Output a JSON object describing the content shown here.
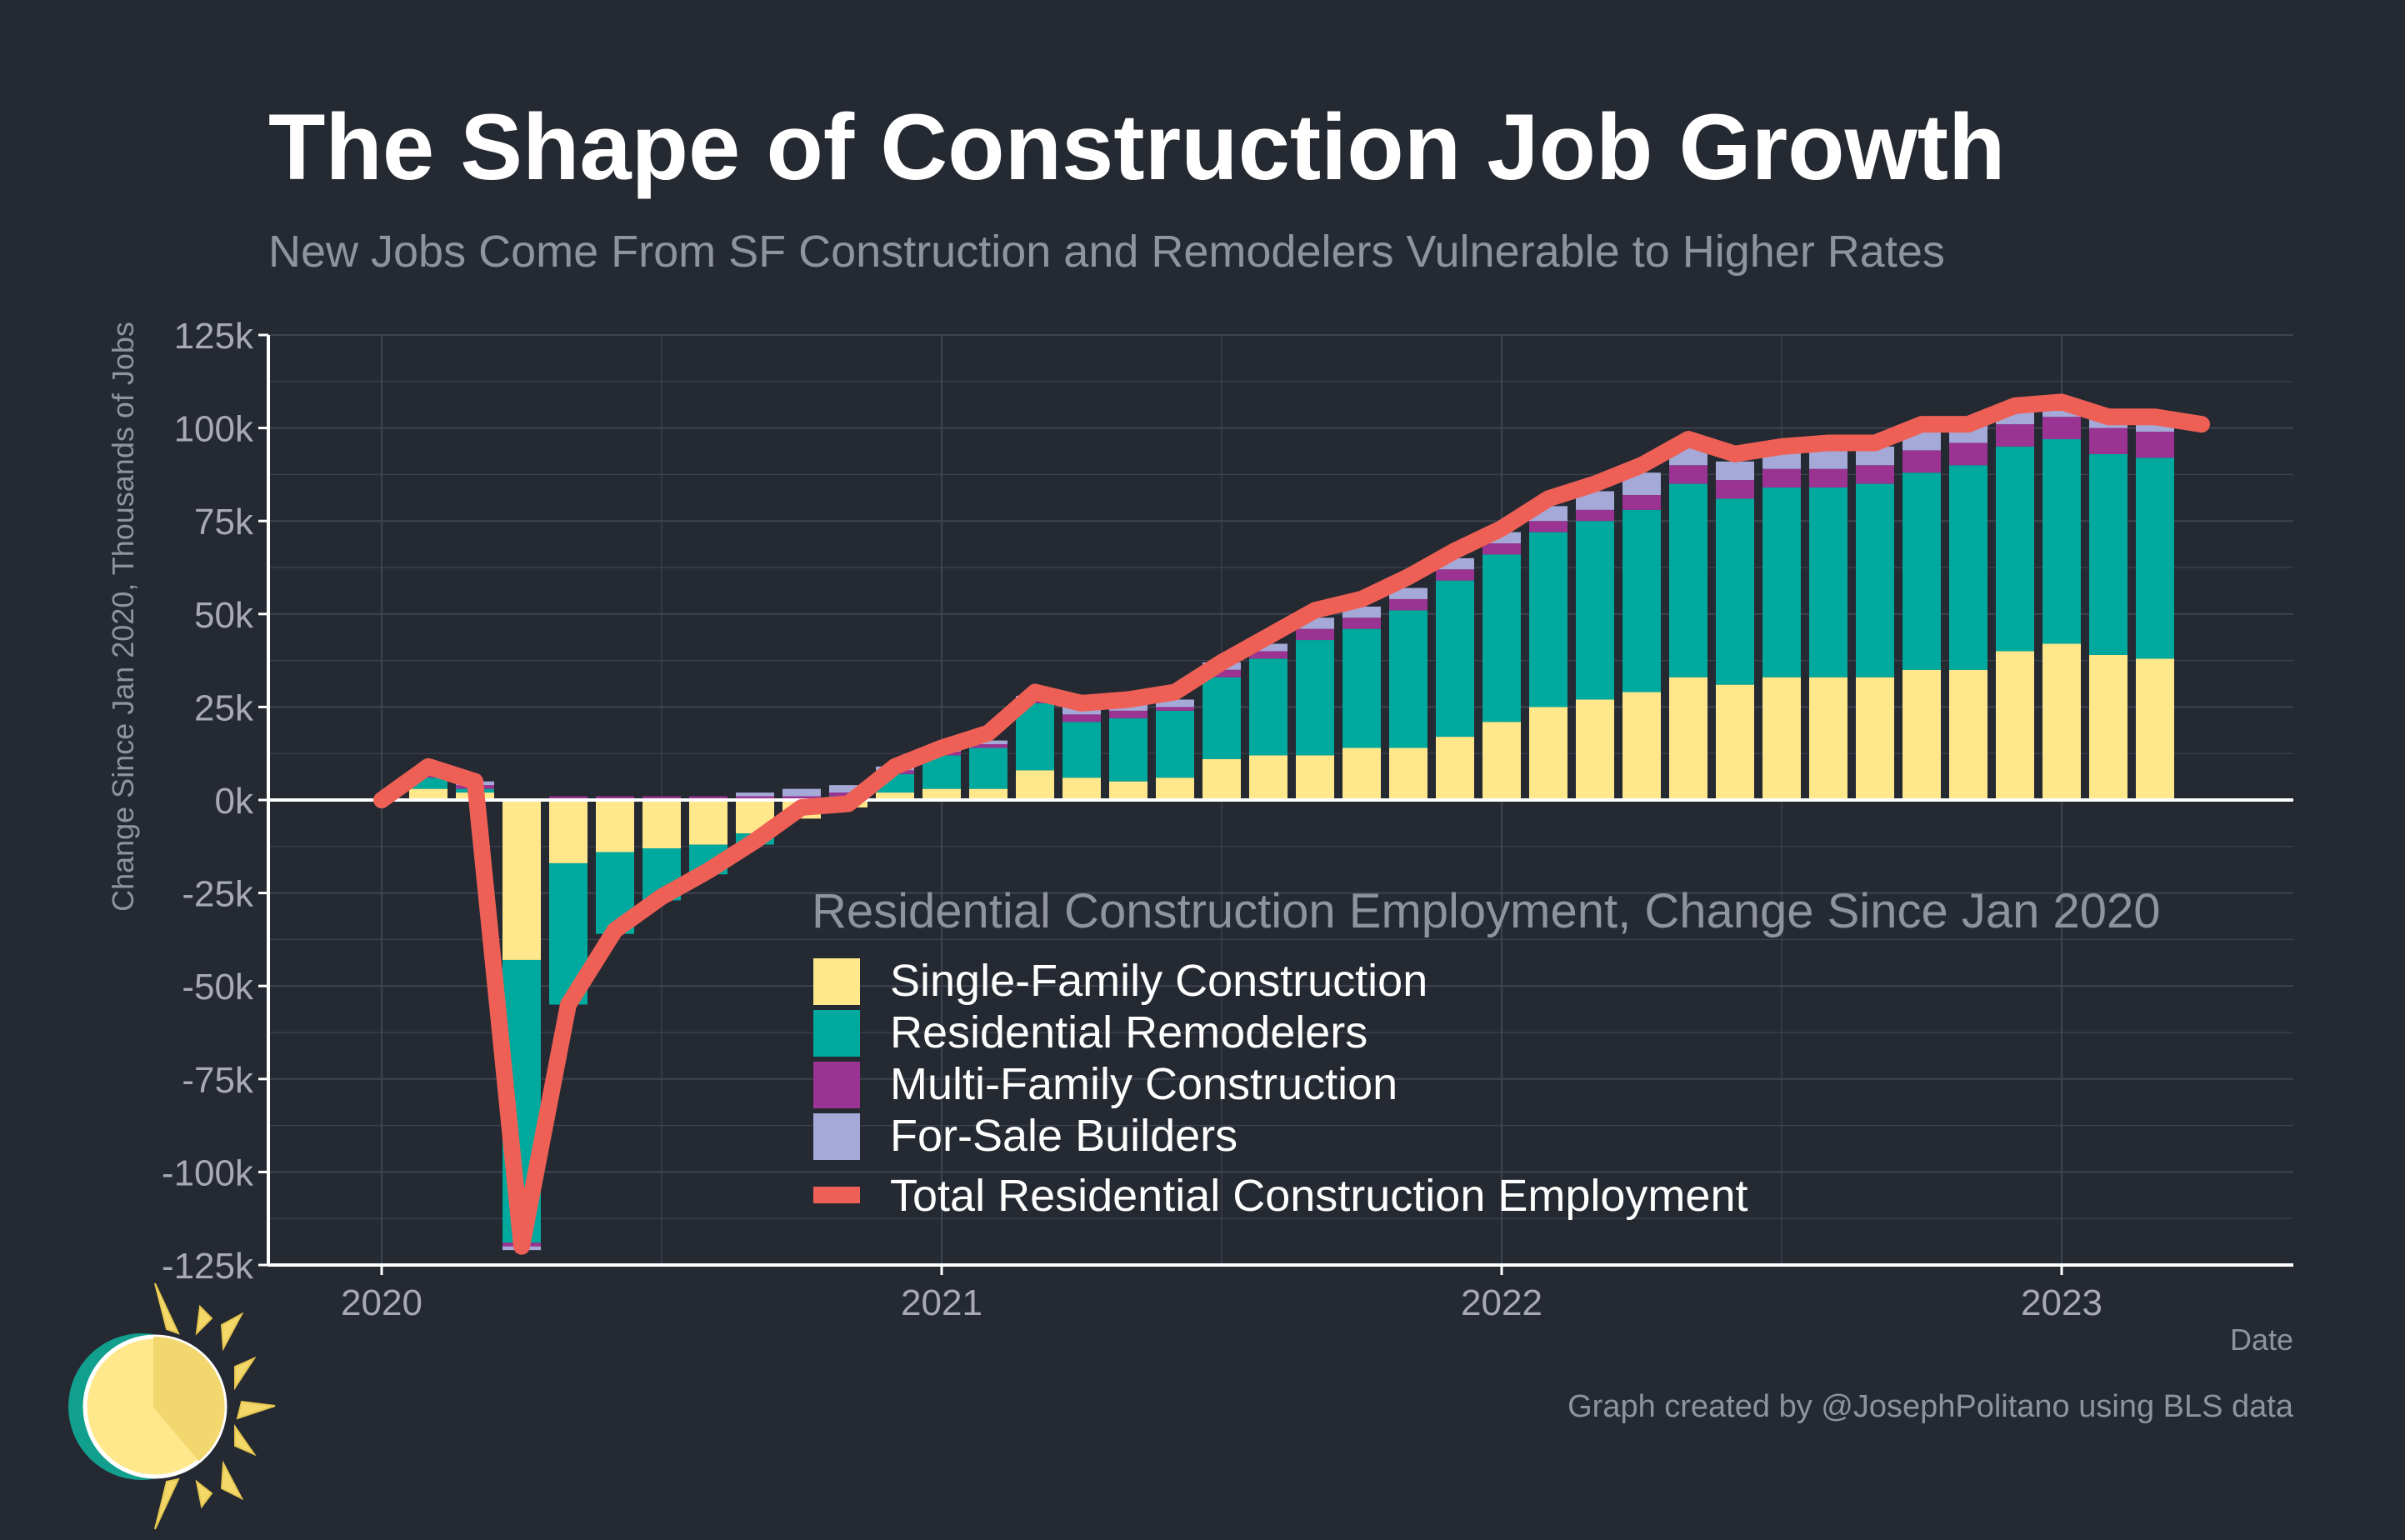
{
  "chart_data": {
    "type": "bar",
    "stacked": true,
    "title": "The Shape of Construction Job Growth",
    "subtitle": "New Jobs Come From SF Construction and Remodelers Vulnerable to Higher Rates",
    "ylabel": "Change Since Jan 2020, Thousands of Jobs",
    "xlabel": "Date",
    "ylim": [
      -125,
      125
    ],
    "yticks": [
      125,
      100,
      75,
      50,
      25,
      0,
      -25,
      -50,
      -75,
      -100,
      -125
    ],
    "ytick_labels": [
      "125k",
      "100k",
      "75k",
      "50k",
      "25k",
      "0k",
      "-25k",
      "-50k",
      "-75k",
      "-100k",
      "-125k"
    ],
    "xticks": [
      "2020",
      "2021",
      "2022",
      "2023"
    ],
    "grid": true,
    "legend_title": "Residential Construction Employment, Change Since Jan 2020",
    "legend_position": "bottom-right",
    "caption": "Graph created by @JosephPolitano using BLS data",
    "categories": [
      "2020-01",
      "2020-02",
      "2020-03",
      "2020-04",
      "2020-05",
      "2020-06",
      "2020-07",
      "2020-08",
      "2020-09",
      "2020-10",
      "2020-11",
      "2020-12",
      "2021-01",
      "2021-02",
      "2021-03",
      "2021-04",
      "2021-05",
      "2021-06",
      "2021-07",
      "2021-08",
      "2021-09",
      "2021-10",
      "2021-11",
      "2021-12",
      "2022-01",
      "2022-02",
      "2022-03",
      "2022-04",
      "2022-05",
      "2022-06",
      "2022-07",
      "2022-08",
      "2022-09",
      "2022-10",
      "2022-11",
      "2022-12",
      "2023-01",
      "2023-02",
      "2023-03"
    ],
    "series": [
      {
        "name": "Single-Family Construction",
        "color": "#FFE88C",
        "values": [
          0,
          3,
          2,
          -43,
          -17,
          -14,
          -13,
          -12,
          -9,
          -5,
          -2,
          2,
          3,
          3,
          8,
          6,
          5,
          6,
          11,
          12,
          12,
          14,
          14,
          17,
          21,
          25,
          27,
          29,
          33,
          31,
          33,
          33,
          33,
          35,
          35,
          40,
          42,
          39,
          38
        ]
      },
      {
        "name": "Residential Remodelers",
        "color": "#00A99D",
        "values": [
          0,
          3,
          1,
          -76,
          -38,
          -22,
          -14,
          -8,
          -3,
          0,
          1,
          5,
          9,
          11,
          18,
          15,
          17,
          18,
          22,
          26,
          31,
          32,
          37,
          42,
          45,
          47,
          48,
          49,
          52,
          50,
          51,
          51,
          52,
          53,
          55,
          55,
          55,
          54,
          54
        ]
      },
      {
        "name": "Multi-Family Construction",
        "color": "#9A3391",
        "values": [
          0,
          1,
          1,
          -1,
          1,
          1,
          1,
          1,
          1,
          1,
          1,
          1,
          1,
          1,
          1,
          2,
          2,
          1,
          2,
          2,
          3,
          3,
          3,
          3,
          3,
          3,
          3,
          4,
          5,
          5,
          5,
          5,
          5,
          6,
          6,
          6,
          6,
          7,
          7
        ]
      },
      {
        "name": "For-Sale Builders",
        "color": "#A4A9D8",
        "values": [
          0,
          1,
          1,
          -1,
          0,
          0,
          0,
          0,
          1,
          2,
          2,
          1,
          1,
          1,
          1,
          2,
          2,
          2,
          2,
          2,
          3,
          3,
          3,
          3,
          3,
          4,
          5,
          6,
          5,
          5,
          5,
          5,
          5,
          5,
          5,
          5,
          4,
          3,
          2
        ]
      }
    ],
    "line": {
      "name": "Total Residential Construction Employment",
      "color": "#EE6055",
      "x": [
        "2020-01",
        "2020-02",
        "2020-03",
        "2020-04",
        "2020-05",
        "2020-06",
        "2020-07",
        "2020-08",
        "2020-09",
        "2020-10",
        "2020-11",
        "2020-12",
        "2021-01",
        "2021-02",
        "2021-03",
        "2021-04",
        "2021-05",
        "2021-06",
        "2021-07",
        "2021-08",
        "2021-09",
        "2021-10",
        "2021-11",
        "2021-12",
        "2022-01",
        "2022-02",
        "2022-03",
        "2022-04",
        "2022-05",
        "2022-06",
        "2022-07",
        "2022-08",
        "2022-09",
        "2022-10",
        "2022-11",
        "2022-12",
        "2023-01",
        "2023-02",
        "2023-03",
        "2023-04"
      ],
      "values": [
        0,
        9,
        5,
        -120,
        -55,
        -35,
        -26,
        -19,
        -11,
        -2,
        -1,
        9,
        14,
        18,
        29,
        26,
        27,
        29,
        37,
        44,
        51,
        54,
        60,
        67,
        73,
        81,
        85,
        90,
        97,
        93,
        95,
        96,
        96,
        101,
        101,
        106,
        107,
        103,
        103,
        101
      ]
    },
    "colors": {
      "background": "#252932",
      "grid": "#3E4350",
      "text": "#FFFFFF",
      "muted": "#8F939C",
      "tick": "#A7AAB2"
    }
  },
  "logo": {
    "icon": "sun-logo-icon"
  }
}
